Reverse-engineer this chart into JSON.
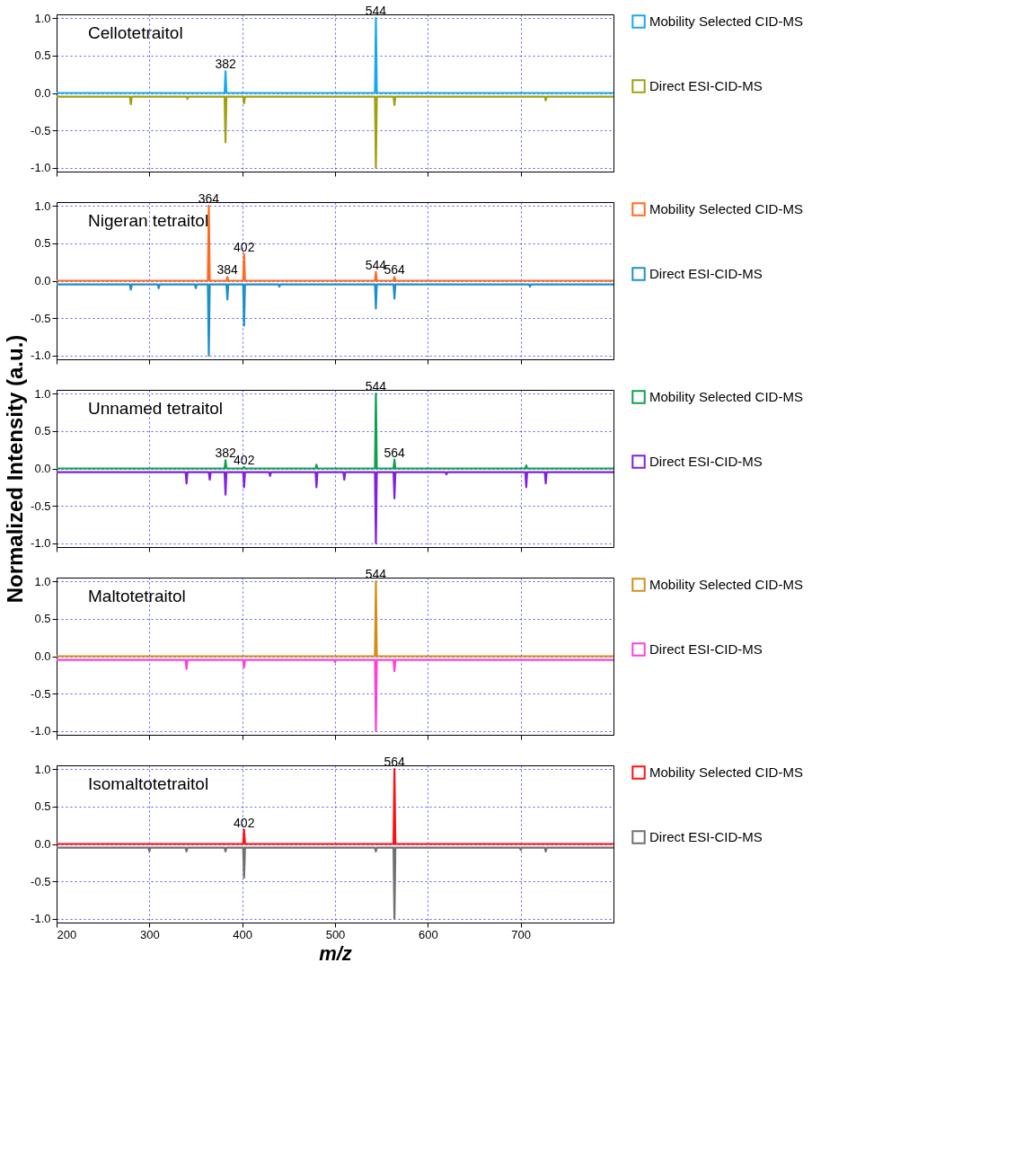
{
  "chart_data": [
    {
      "type": "line",
      "title": "Cellotetraitol",
      "xlim": [
        200,
        800
      ],
      "ylim": [
        -1.05,
        1.05
      ],
      "xticks": [
        200,
        300,
        400,
        500,
        600,
        700
      ],
      "yticks": [
        {
          "value": 1,
          "label": "1.0"
        },
        {
          "value": 0.5,
          "label": "0.5"
        },
        {
          "value": 0,
          "label": "0.0"
        },
        {
          "value": -0.5,
          "label": "-0.5"
        },
        {
          "value": -1,
          "label": "-1.0"
        }
      ],
      "grid": true,
      "legend": "right",
      "tick_labels": "y",
      "series": [
        {
          "name": "Mobility Selected CID-MS",
          "color": "#18a8f0",
          "x": [
            200,
            381,
            382,
            383,
            543,
            544,
            545,
            800
          ],
          "values": [
            0,
            0,
            0.29,
            0,
            0,
            1.0,
            0,
            0
          ]
        },
        {
          "name": "Direct ESI-CID-MS",
          "color": "#a0a010",
          "x": [
            200,
            279,
            280,
            281,
            340,
            341,
            342,
            381,
            382,
            383,
            401,
            402,
            403,
            543,
            544,
            545,
            563,
            564,
            565,
            726,
            727,
            728,
            800
          ],
          "values": [
            -0.05,
            -0.05,
            -0.15,
            -0.05,
            -0.05,
            -0.08,
            -0.05,
            -0.05,
            -0.66,
            -0.05,
            -0.05,
            -0.14,
            -0.05,
            -0.05,
            -1.0,
            -0.05,
            -0.05,
            -0.16,
            -0.05,
            -0.05,
            -0.1,
            -0.05,
            -0.05
          ]
        }
      ],
      "annotations": [
        {
          "text": "382",
          "x": 382,
          "y": 0.29
        },
        {
          "text": "544",
          "x": 544,
          "y": 1.0
        }
      ]
    },
    {
      "type": "line",
      "title": "Nigeran tetraitol",
      "xlim": [
        200,
        800
      ],
      "ylim": [
        -1.05,
        1.05
      ],
      "xticks": [
        200,
        300,
        400,
        500,
        600,
        700
      ],
      "yticks": [
        {
          "value": 1,
          "label": "1.0"
        },
        {
          "value": 0.5,
          "label": "0.5"
        },
        {
          "value": 0,
          "label": "0.0"
        },
        {
          "value": -0.5,
          "label": "-0.5"
        },
        {
          "value": -1,
          "label": "-1.0"
        }
      ],
      "grid": true,
      "legend": "right",
      "tick_labels": "y",
      "series": [
        {
          "name": "Mobility Selected CID-MS",
          "color": "#ff6a20",
          "x": [
            200,
            363,
            364,
            365,
            383,
            384,
            385,
            401,
            402,
            403,
            543,
            544,
            545,
            563,
            564,
            565,
            800
          ],
          "values": [
            0,
            0,
            1.0,
            0,
            0,
            0.05,
            0,
            0,
            0.36,
            0,
            0,
            0.12,
            0,
            0,
            0.05,
            0,
            0
          ]
        },
        {
          "name": "Direct ESI-CID-MS",
          "color": "#1f8fc8",
          "x": [
            200,
            279,
            280,
            281,
            309,
            310,
            311,
            349,
            350,
            351,
            363,
            364,
            365,
            383,
            384,
            385,
            401,
            402,
            403,
            439,
            440,
            441,
            543,
            544,
            545,
            563,
            564,
            565,
            709,
            710,
            711,
            800
          ],
          "values": [
            -0.05,
            -0.05,
            -0.12,
            -0.05,
            -0.05,
            -0.1,
            -0.05,
            -0.05,
            -0.1,
            -0.05,
            -0.05,
            -1.0,
            -0.05,
            -0.05,
            -0.25,
            -0.05,
            -0.05,
            -0.6,
            -0.05,
            -0.05,
            -0.08,
            -0.05,
            -0.05,
            -0.37,
            -0.05,
            -0.05,
            -0.24,
            -0.05,
            -0.05,
            -0.08,
            -0.05,
            -0.05
          ]
        }
      ],
      "annotations": [
        {
          "text": "364",
          "x": 364,
          "y": 1.0
        },
        {
          "text": "384",
          "x": 384,
          "y": 0.05
        },
        {
          "text": "402",
          "x": 402,
          "y": 0.36
        },
        {
          "text": "544",
          "x": 544,
          "y": 0.12
        },
        {
          "text": "564",
          "x": 564,
          "y": 0.05
        }
      ]
    },
    {
      "type": "line",
      "title": "Unnamed tetraitol",
      "ylabel": "Normalized Intensity (a.u.)",
      "xlim": [
        200,
        800
      ],
      "ylim": [
        -1.05,
        1.05
      ],
      "xticks": [
        200,
        300,
        400,
        500,
        600,
        700
      ],
      "yticks": [
        {
          "value": 1,
          "label": "1.0"
        },
        {
          "value": 0.5,
          "label": "0.5"
        },
        {
          "value": 0,
          "label": "0.0"
        },
        {
          "value": -0.5,
          "label": "-0.5"
        },
        {
          "value": -1,
          "label": "-1.0"
        }
      ],
      "grid": true,
      "legend": "right",
      "tick_labels": "y",
      "series": [
        {
          "name": "Mobility Selected CID-MS",
          "color": "#10a050",
          "x": [
            200,
            381,
            382,
            383,
            401,
            402,
            403,
            479,
            480,
            481,
            543,
            544,
            545,
            563,
            564,
            565,
            705,
            706,
            707,
            800
          ],
          "values": [
            0,
            0,
            0.11,
            0,
            0,
            0.02,
            0,
            0,
            0.05,
            0,
            0,
            1.0,
            0,
            0,
            0.12,
            0,
            0,
            0.04,
            0,
            0
          ]
        },
        {
          "name": "Direct ESI-CID-MS",
          "color": "#8020e0",
          "x": [
            200,
            339,
            340,
            341,
            364,
            365,
            366,
            381,
            382,
            383,
            401,
            402,
            403,
            429,
            430,
            431,
            479,
            480,
            481,
            509,
            510,
            511,
            543,
            544,
            545,
            563,
            564,
            565,
            619,
            620,
            621,
            705,
            706,
            707,
            726,
            727,
            728,
            800
          ],
          "values": [
            -0.05,
            -0.05,
            -0.2,
            -0.05,
            -0.05,
            -0.15,
            -0.05,
            -0.05,
            -0.35,
            -0.05,
            -0.05,
            -0.25,
            -0.05,
            -0.05,
            -0.1,
            -0.05,
            -0.05,
            -0.25,
            -0.05,
            -0.05,
            -0.15,
            -0.05,
            -0.05,
            -1.0,
            -0.05,
            -0.05,
            -0.4,
            -0.05,
            -0.05,
            -0.08,
            -0.05,
            -0.05,
            -0.25,
            -0.05,
            -0.05,
            -0.2,
            -0.05,
            -0.05
          ]
        }
      ],
      "annotations": [
        {
          "text": "382",
          "x": 382,
          "y": 0.11
        },
        {
          "text": "402",
          "x": 402,
          "y": 0.02
        },
        {
          "text": "544",
          "x": 544,
          "y": 1.0
        },
        {
          "text": "564",
          "x": 564,
          "y": 0.12
        }
      ]
    },
    {
      "type": "line",
      "title": "Maltotetraitol",
      "xlim": [
        200,
        800
      ],
      "ylim": [
        -1.05,
        1.05
      ],
      "xticks": [
        200,
        300,
        400,
        500,
        600,
        700
      ],
      "yticks": [
        {
          "value": 1,
          "label": "1.0"
        },
        {
          "value": 0.5,
          "label": "0.5"
        },
        {
          "value": 0,
          "label": "0.0"
        },
        {
          "value": -0.5,
          "label": "-0.5"
        },
        {
          "value": -1,
          "label": "-1.0"
        }
      ],
      "grid": true,
      "legend": "right",
      "tick_labels": "y",
      "series": [
        {
          "name": "Mobility Selected CID-MS",
          "color": "#d09018",
          "x": [
            200,
            543,
            544,
            545,
            800
          ],
          "values": [
            0,
            0,
            1.0,
            0,
            0
          ]
        },
        {
          "name": "Direct ESI-CID-MS",
          "color": "#ff40d8",
          "x": [
            200,
            339,
            340,
            341,
            401,
            402,
            403,
            499,
            500,
            501,
            543,
            544,
            545,
            563,
            564,
            565,
            800
          ],
          "values": [
            -0.05,
            -0.05,
            -0.17,
            -0.05,
            -0.05,
            -0.15,
            -0.05,
            -0.05,
            -0.08,
            -0.05,
            -0.05,
            -1.0,
            -0.05,
            -0.05,
            -0.2,
            -0.05,
            -0.05
          ]
        }
      ],
      "annotations": [
        {
          "text": "544",
          "x": 544,
          "y": 1.0
        }
      ]
    },
    {
      "type": "line",
      "title": "Isomaltotetraitol",
      "xlabel": "m/z",
      "xlim": [
        200,
        800
      ],
      "ylim": [
        -1.05,
        1.05
      ],
      "xticks": [
        200,
        300,
        400,
        500,
        600,
        700
      ],
      "yticks": [
        {
          "value": 1,
          "label": "1.0"
        },
        {
          "value": 0.5,
          "label": "0.5"
        },
        {
          "value": 0,
          "label": "0.0"
        },
        {
          "value": -0.5,
          "label": "-0.5"
        },
        {
          "value": -1,
          "label": "-1.0"
        }
      ],
      "grid": true,
      "legend": "right",
      "series": [
        {
          "name": "Mobility Selected CID-MS",
          "color": "#ff1010",
          "x": [
            200,
            401,
            402,
            403,
            563,
            564,
            565,
            800
          ],
          "values": [
            0,
            0,
            0.19,
            0,
            0,
            1.0,
            0,
            0
          ]
        },
        {
          "name": "Direct ESI-CID-MS",
          "color": "#707070",
          "x": [
            200,
            299,
            300,
            301,
            339,
            340,
            341,
            381,
            382,
            383,
            401,
            402,
            403,
            543,
            544,
            545,
            563,
            564,
            565,
            699,
            700,
            701,
            726,
            727,
            728,
            800
          ],
          "values": [
            -0.05,
            -0.05,
            -0.1,
            -0.05,
            -0.05,
            -0.1,
            -0.05,
            -0.05,
            -0.1,
            -0.05,
            -0.05,
            -0.45,
            -0.05,
            -0.05,
            -0.1,
            -0.05,
            -0.05,
            -1.0,
            -0.05,
            -0.05,
            -0.08,
            -0.05,
            -0.05,
            -0.1,
            -0.05,
            -0.05
          ]
        }
      ],
      "annotations": [
        {
          "text": "402",
          "x": 402,
          "y": 0.19
        },
        {
          "text": "564",
          "x": 564,
          "y": 1.0
        }
      ]
    }
  ]
}
